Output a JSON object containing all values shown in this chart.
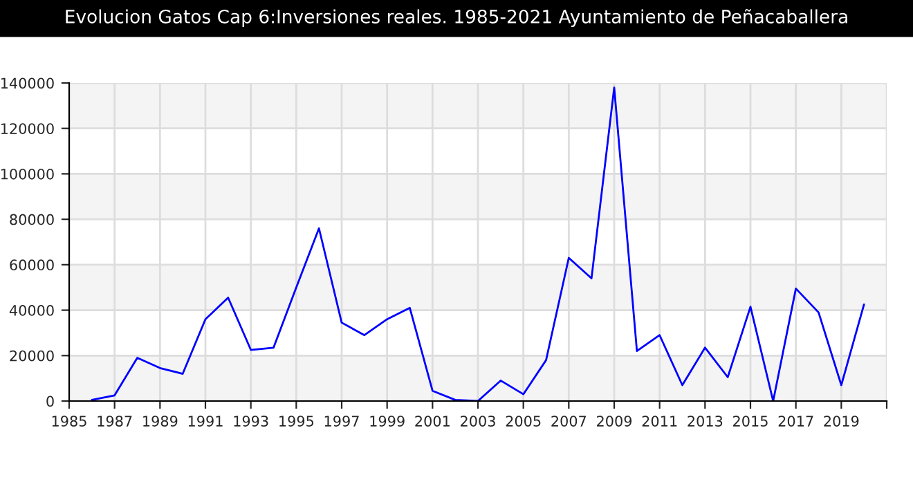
{
  "chart_data": {
    "type": "line",
    "title": "Evolucion Gatos Cap 6:Inversiones reales. 1985-2021 Ayuntamiento de Peñacaballera",
    "x": [
      1986,
      1987,
      1988,
      1989,
      1990,
      1991,
      1992,
      1993,
      1994,
      1995,
      1996,
      1997,
      1998,
      1999,
      2000,
      2001,
      2002,
      2003,
      2004,
      2005,
      2006,
      2007,
      2008,
      2009,
      2010,
      2011,
      2012,
      2013,
      2014,
      2015,
      2016,
      2017,
      2018,
      2019,
      2020
    ],
    "series": [
      {
        "color": "#0000ff",
        "values": [
          500,
          2500,
          19000,
          14500,
          12000,
          36000,
          45500,
          22500,
          23500,
          50000,
          76000,
          34500,
          29000,
          36000,
          41000,
          4500,
          500,
          0,
          9000,
          3000,
          18000,
          63000,
          54000,
          138000,
          22000,
          29000,
          7000,
          23500,
          10500,
          41500,
          0,
          49500,
          39000,
          7000,
          42500
        ]
      }
    ],
    "xlim": [
      1985,
      2021
    ],
    "xticks": [
      1985,
      1987,
      1989,
      1991,
      1993,
      1995,
      1997,
      1999,
      2001,
      2003,
      2005,
      2007,
      2009,
      2011,
      2013,
      2015,
      2017,
      2019,
      {
        "value": 2021,
        "label": null
      }
    ],
    "ylim": [
      0,
      140000
    ],
    "yticks": [
      0,
      20000,
      40000,
      60000,
      80000,
      100000,
      120000,
      140000
    ],
    "grid": true,
    "marker": "none",
    "line_style": "solid"
  }
}
